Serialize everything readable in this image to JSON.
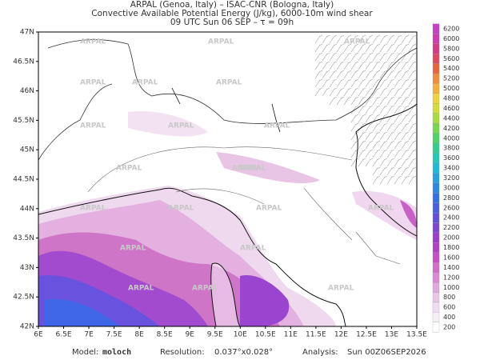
{
  "header": {
    "line1": "ARPAL (Genoa, Italy)  –  ISAC-CNR (Bologna, Italy)",
    "line2": "Convective Available Potential Energy (J/kg), 6000-10m wind shear",
    "line3": "09 UTC Sun 06 SEP  –  τ = 09h"
  },
  "map": {
    "watermark": "ARPAL",
    "lat_range": [
      42,
      47
    ],
    "lon_range": [
      6,
      13.5
    ],
    "lat_ticks": [
      {
        "value": 42,
        "label": "42N"
      },
      {
        "value": 42.5,
        "label": "42.5N"
      },
      {
        "value": 43,
        "label": "43N"
      },
      {
        "value": 43.5,
        "label": "43.5N"
      },
      {
        "value": 44,
        "label": "44N"
      },
      {
        "value": 44.5,
        "label": "44.5N"
      },
      {
        "value": 45,
        "label": "45N"
      },
      {
        "value": 45.5,
        "label": "45.5N"
      },
      {
        "value": 46,
        "label": "46N"
      },
      {
        "value": 46.5,
        "label": "46.5N"
      },
      {
        "value": 47,
        "label": "47N"
      }
    ],
    "lon_ticks": [
      {
        "value": 6,
        "label": "6E"
      },
      {
        "value": 6.5,
        "label": "6.5E"
      },
      {
        "value": 7,
        "label": "7E"
      },
      {
        "value": 7.5,
        "label": "7.5E"
      },
      {
        "value": 8,
        "label": "8E"
      },
      {
        "value": 8.5,
        "label": "8.5E"
      },
      {
        "value": 9,
        "label": "9E"
      },
      {
        "value": 9.5,
        "label": "9.5E"
      },
      {
        "value": 10,
        "label": "10E"
      },
      {
        "value": 10.5,
        "label": "10.5E"
      },
      {
        "value": 11,
        "label": "11E"
      },
      {
        "value": 11.5,
        "label": "11.5E"
      },
      {
        "value": 12,
        "label": "12E"
      },
      {
        "value": 12.5,
        "label": "12.5E"
      },
      {
        "value": 13,
        "label": "13E"
      },
      {
        "value": 13.5,
        "label": "13.5E"
      }
    ]
  },
  "colorbar": {
    "levels": [
      200,
      400,
      600,
      800,
      1000,
      1200,
      1400,
      1600,
      1800,
      2000,
      2200,
      2400,
      2600,
      2800,
      3000,
      3200,
      3400,
      3600,
      3800,
      4000,
      4200,
      4400,
      4600,
      4800,
      5000,
      5200,
      5400,
      5600,
      5800,
      6000,
      6200
    ],
    "colors": [
      "#ffffff",
      "#f7eef6",
      "#f0dcef",
      "#e8c6e6",
      "#e0a8dc",
      "#d98ad3",
      "#d36ccc",
      "#c94fc6",
      "#b540c8",
      "#9b3fd0",
      "#7f44d8",
      "#6450e0",
      "#4b5ee6",
      "#3470e8",
      "#2a88e6",
      "#25a0e0",
      "#22b8d8",
      "#24c8b8",
      "#30cf90",
      "#4cd468",
      "#78d84c",
      "#a8dc40",
      "#d2dc3c",
      "#f0d03c",
      "#f4b03c",
      "#f08c3c",
      "#ea6440",
      "#e04860",
      "#d83a88",
      "#d03cb0",
      "#c840c8"
    ]
  },
  "footer": {
    "model_label": "Model:",
    "model": "moloch",
    "resolution_label": "Resolution:",
    "resolution": "0.037°x0.028°",
    "analysis_label": "Analysis:",
    "analysis": "Sun 00Z06SEP2026"
  }
}
